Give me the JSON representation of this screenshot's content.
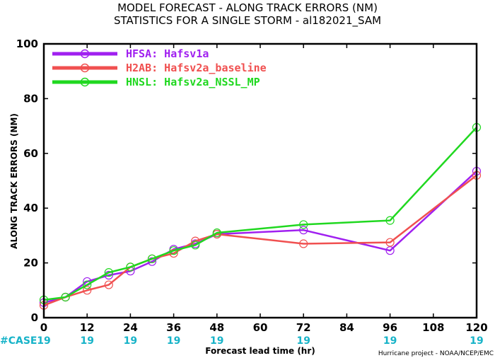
{
  "chart_data": {
    "type": "line",
    "title": [
      "MODEL FORECAST - ALONG TRACK ERRORS (NM)",
      "STATISTICS FOR A SINGLE STORM - al182021_SAM"
    ],
    "xlabel": "Forecast lead time (hr)",
    "ylabel": "ALONG TRACK ERRORS (NM)",
    "xlim": [
      0,
      120
    ],
    "ylim": [
      0,
      100
    ],
    "xticks": [
      0,
      12,
      24,
      36,
      48,
      60,
      72,
      84,
      96,
      108,
      120
    ],
    "yticks": [
      0,
      20,
      40,
      60,
      80,
      100
    ],
    "legend_position": "top-left",
    "case_label": "#CASE",
    "case_x": [
      0,
      12,
      24,
      36,
      48,
      72,
      96,
      120
    ],
    "cases": [
      "19",
      "19",
      "19",
      "19",
      "19",
      "19",
      "19",
      "19"
    ],
    "credit": "Hurricane project - NOAA/NCEP/EMC",
    "series": [
      {
        "name": "HFSA: Hafsv1a",
        "color": "#a020f0",
        "x": [
          0,
          6,
          12,
          18,
          24,
          30,
          36,
          42,
          48,
          72,
          96,
          120
        ],
        "y": [
          5.5,
          7.5,
          13.2,
          15.5,
          17,
          20.5,
          25,
          27,
          30.5,
          32,
          24.5,
          53.5
        ]
      },
      {
        "name": "H2AB: Hafsv2a_baseline",
        "color": "#f05050",
        "x": [
          0,
          6,
          12,
          18,
          24,
          30,
          36,
          42,
          48,
          72,
          96,
          120
        ],
        "y": [
          4.5,
          7.5,
          10,
          12,
          18.5,
          21.5,
          23.5,
          28,
          30.5,
          27,
          27.5,
          52
        ]
      },
      {
        "name": "HNSL: Hafsv2a_NSSL_MP",
        "color": "#20d820",
        "x": [
          0,
          6,
          12,
          18,
          24,
          30,
          36,
          42,
          48,
          72,
          96,
          120
        ],
        "y": [
          6.5,
          7.5,
          12,
          16.5,
          18.5,
          21.5,
          24.5,
          26.5,
          31,
          34,
          35.5,
          69.5
        ]
      }
    ]
  }
}
